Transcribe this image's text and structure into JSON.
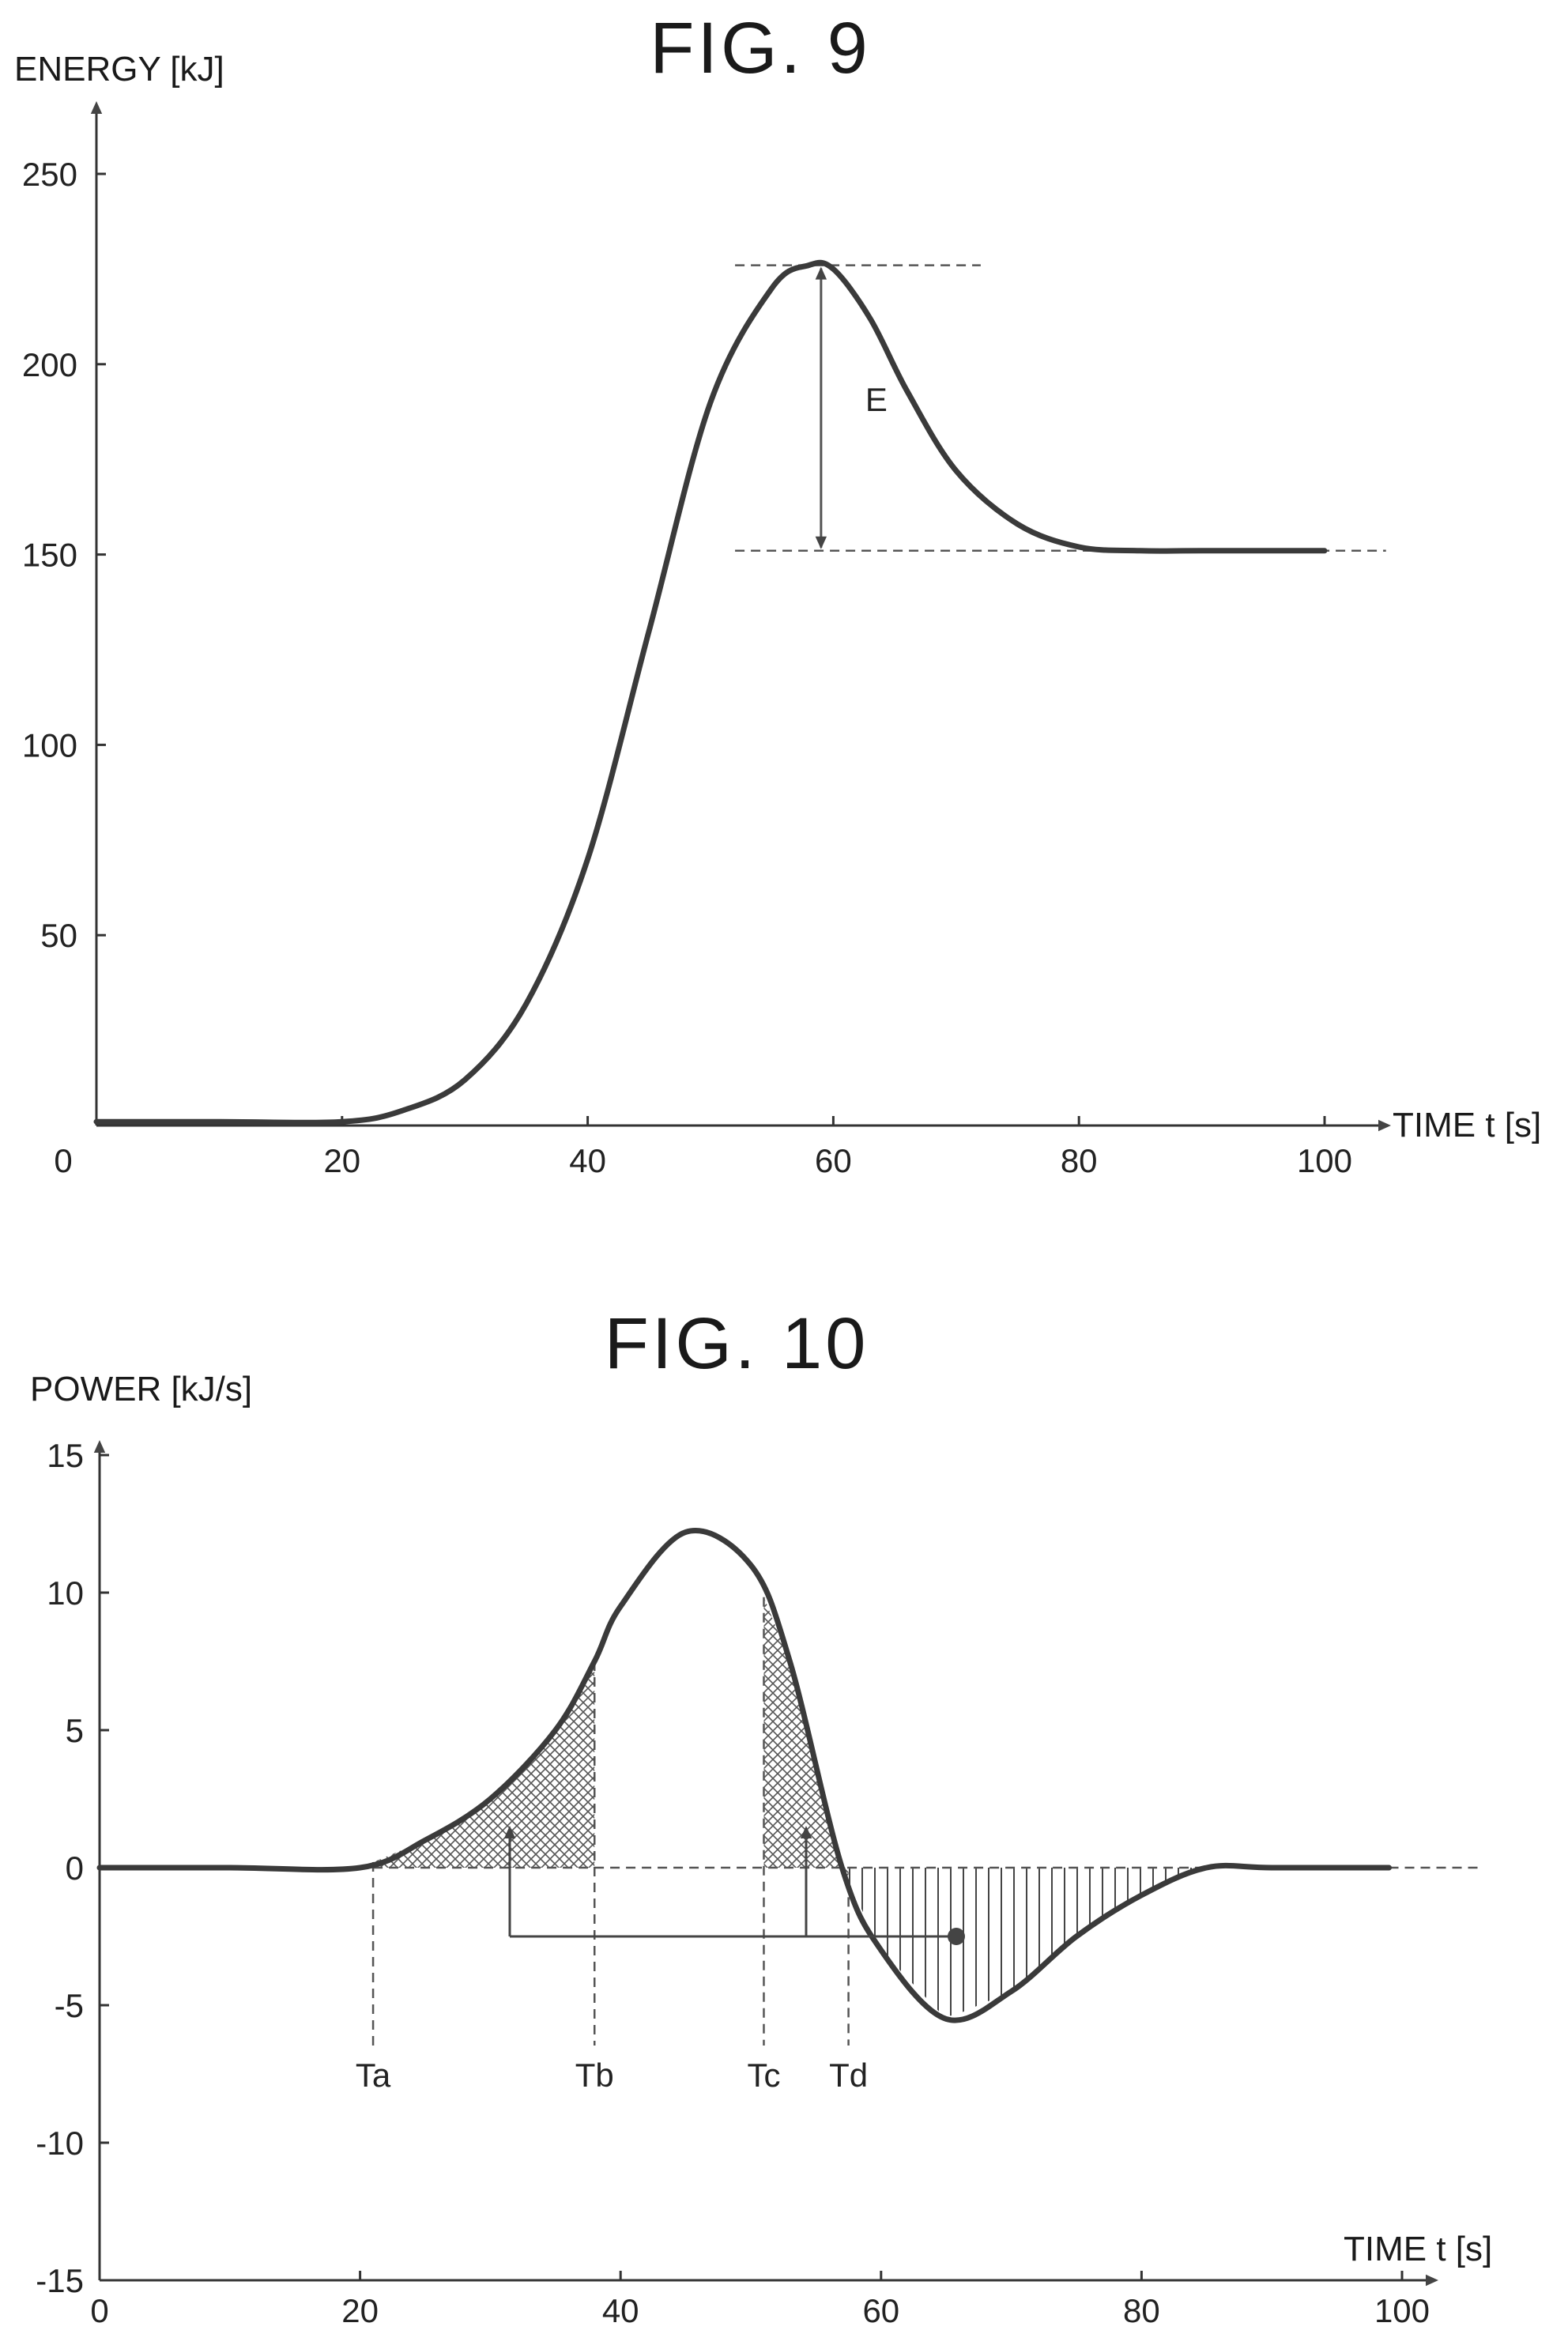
{
  "charts": [
    {
      "figure_label": "FIG. 9",
      "chart_data": {
        "type": "line",
        "title": "",
        "xlabel": "TIME t [s]",
        "ylabel": "ENERGY [kJ]",
        "xlim": [
          0,
          105
        ],
        "ylim": [
          0,
          260
        ],
        "xticks": [
          0,
          20,
          40,
          60,
          80,
          100
        ],
        "yticks": [
          0,
          50,
          100,
          150,
          200,
          250
        ],
        "x_tick_labels": [
          "0",
          "20",
          "40",
          "60",
          "80",
          "100"
        ],
        "y_tick_labels": [
          "50",
          "100",
          "150",
          "200",
          "250"
        ],
        "grid": false,
        "series": [
          {
            "x": [
              0,
              10,
              20,
              25,
              30,
              35,
              40,
              45,
              50,
              55,
              58,
              60,
              63,
              66,
              70,
              75,
              80,
              85,
              90,
              100
            ],
            "values": [
              1,
              1,
              1,
              4,
              12,
              32,
              70,
              130,
              190,
              220,
              226,
              225,
              212,
              193,
              172,
              158,
              152,
              151,
              151,
              151
            ]
          }
        ],
        "annotations": [
          {
            "text": "E",
            "type": "dimension",
            "x": 59,
            "y_from": 151,
            "y_to": 226
          }
        ],
        "reference_lines": [
          {
            "axis": "y",
            "value": 226,
            "x_from": 52,
            "x_to": 72
          },
          {
            "axis": "y",
            "value": 151,
            "x_from": 52,
            "x_to": 105
          }
        ]
      }
    },
    {
      "figure_label": "FIG. 10",
      "chart_data": {
        "type": "line",
        "title": "",
        "xlabel": "TIME t [s]",
        "ylabel": "POWER [kJ/s]",
        "xlim": [
          0,
          102
        ],
        "ylim": [
          -15,
          15
        ],
        "xticks": [
          0,
          20,
          40,
          60,
          80,
          100
        ],
        "yticks": [
          -15,
          -10,
          -5,
          0,
          5,
          10,
          15
        ],
        "x_tick_labels": [
          "0",
          "20",
          "40",
          "60",
          "80",
          "100"
        ],
        "y_tick_labels": [
          "15",
          "10",
          "5",
          "0",
          "-5",
          "-10",
          "-15"
        ],
        "grid": false,
        "series": [
          {
            "x": [
              0,
              10,
              20,
              25,
              30,
              35,
              38,
              40,
              45,
              50,
              53,
              57,
              60,
              65,
              70,
              75,
              80,
              85,
              90,
              99
            ],
            "values": [
              0,
              0,
              0,
              1,
              2.5,
              5,
              7.5,
              9.5,
              12.2,
              11,
              7.5,
              0,
              -3,
              -5.5,
              -4.5,
              -2.5,
              -1,
              0,
              0,
              0
            ]
          }
        ],
        "markers": [
          {
            "label": "Ta",
            "x": 21
          },
          {
            "label": "Tb",
            "x": 38
          },
          {
            "label": "Tc",
            "x": 51
          },
          {
            "label": "Td",
            "x": 57.5
          }
        ],
        "shaded_regions": [
          {
            "pattern": "crosshatch",
            "x_from": 21,
            "x_to": 38
          },
          {
            "pattern": "crosshatch",
            "x_from": 51,
            "x_to": 57.5
          },
          {
            "pattern": "vertical-lines",
            "x_from": 57.5,
            "x_to": 85
          }
        ]
      }
    }
  ]
}
